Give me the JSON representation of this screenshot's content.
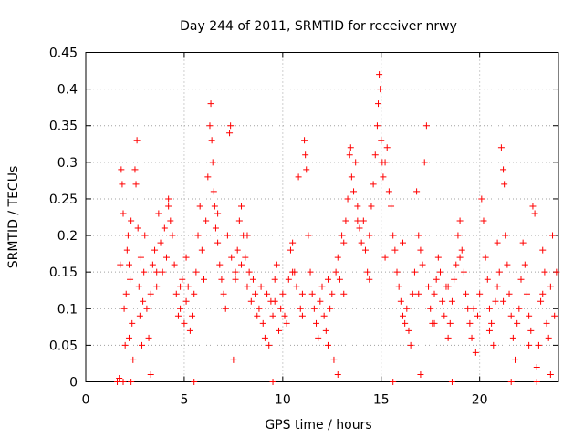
{
  "chart_data": {
    "type": "scatter",
    "title": "Day 244 of 2011, SRMTID for receiver nrwy",
    "xlabel": "GPS time / hours",
    "ylabel": "SRMTID / TECUs",
    "xlim": [
      0,
      24
    ],
    "ylim": [
      0,
      0.45
    ],
    "xticks": [
      0,
      5,
      10,
      15,
      20
    ],
    "xtick_labels": [
      "0",
      "5",
      "10",
      "15",
      "20"
    ],
    "yticks": [
      0,
      0.05,
      0.1,
      0.15,
      0.2,
      0.25,
      0.3,
      0.35,
      0.4,
      0.45
    ],
    "ytick_labels": [
      "0",
      "0.05",
      "0.1",
      "0.15",
      "0.2",
      "0.25",
      "0.3",
      "0.35",
      "0.4",
      "0.45"
    ],
    "grid": true,
    "marker": "+",
    "color": "#ff0000",
    "series": [
      {
        "name": "SRMTID",
        "points": [
          [
            1.6,
            0.0
          ],
          [
            1.7,
            0.005
          ],
          [
            1.75,
            0.16
          ],
          [
            1.8,
            0.29
          ],
          [
            1.85,
            0.27
          ],
          [
            1.9,
            0.23
          ],
          [
            1.95,
            0.1
          ],
          [
            2.0,
            0.05
          ],
          [
            2.05,
            0.12
          ],
          [
            2.1,
            0.18
          ],
          [
            2.15,
            0.2
          ],
          [
            2.2,
            0.06
          ],
          [
            2.25,
            0.14
          ],
          [
            2.3,
            0.22
          ],
          [
            2.35,
            0.08
          ],
          [
            2.4,
            0.03
          ],
          [
            2.5,
            0.29
          ],
          [
            2.55,
            0.27
          ],
          [
            2.6,
            0.33
          ],
          [
            2.65,
            0.21
          ],
          [
            2.7,
            0.13
          ],
          [
            2.75,
            0.09
          ],
          [
            2.8,
            0.17
          ],
          [
            2.85,
            0.05
          ],
          [
            2.9,
            0.11
          ],
          [
            2.95,
            0.15
          ],
          [
            3.0,
            0.2
          ],
          [
            3.1,
            0.1
          ],
          [
            3.2,
            0.06
          ],
          [
            3.3,
            0.12
          ],
          [
            3.4,
            0.16
          ],
          [
            3.5,
            0.18
          ],
          [
            3.6,
            0.13
          ],
          [
            3.7,
            0.23
          ],
          [
            3.8,
            0.19
          ],
          [
            3.9,
            0.15
          ],
          [
            4.0,
            0.21
          ],
          [
            4.1,
            0.17
          ],
          [
            4.2,
            0.25
          ],
          [
            4.3,
            0.22
          ],
          [
            4.4,
            0.2
          ],
          [
            4.5,
            0.16
          ],
          [
            4.6,
            0.12
          ],
          [
            4.7,
            0.09
          ],
          [
            4.8,
            0.1
          ],
          [
            4.9,
            0.14
          ],
          [
            5.0,
            0.08
          ],
          [
            5.1,
            0.11
          ],
          [
            5.2,
            0.13
          ],
          [
            5.3,
            0.07
          ],
          [
            5.4,
            0.09
          ],
          [
            5.5,
            0.12
          ],
          [
            5.6,
            0.15
          ],
          [
            5.7,
            0.2
          ],
          [
            5.8,
            0.24
          ],
          [
            5.9,
            0.18
          ],
          [
            6.0,
            0.14
          ],
          [
            6.1,
            0.22
          ],
          [
            6.2,
            0.28
          ],
          [
            6.3,
            0.35
          ],
          [
            6.35,
            0.38
          ],
          [
            6.4,
            0.33
          ],
          [
            6.45,
            0.3
          ],
          [
            6.5,
            0.26
          ],
          [
            6.55,
            0.24
          ],
          [
            6.6,
            0.21
          ],
          [
            6.7,
            0.19
          ],
          [
            6.8,
            0.16
          ],
          [
            6.9,
            0.14
          ],
          [
            7.0,
            0.12
          ],
          [
            7.1,
            0.1
          ],
          [
            7.2,
            0.2
          ],
          [
            7.3,
            0.34
          ],
          [
            7.35,
            0.35
          ],
          [
            7.4,
            0.17
          ],
          [
            7.5,
            0.03
          ],
          [
            7.6,
            0.15
          ],
          [
            7.7,
            0.18
          ],
          [
            7.8,
            0.22
          ],
          [
            7.9,
            0.24
          ],
          [
            8.0,
            0.2
          ],
          [
            8.1,
            0.17
          ],
          [
            8.2,
            0.13
          ],
          [
            8.3,
            0.15
          ],
          [
            8.4,
            0.11
          ],
          [
            8.5,
            0.14
          ],
          [
            8.6,
            0.12
          ],
          [
            8.7,
            0.09
          ],
          [
            8.8,
            0.1
          ],
          [
            8.9,
            0.13
          ],
          [
            9.0,
            0.08
          ],
          [
            9.1,
            0.06
          ],
          [
            9.2,
            0.12
          ],
          [
            9.3,
            0.05
          ],
          [
            9.4,
            0.11
          ],
          [
            9.5,
            0.09
          ],
          [
            9.6,
            0.14
          ],
          [
            9.7,
            0.16
          ],
          [
            9.8,
            0.07
          ],
          [
            9.9,
            0.1
          ],
          [
            10.0,
            0.12
          ],
          [
            10.1,
            0.09
          ],
          [
            10.2,
            0.08
          ],
          [
            10.3,
            0.14
          ],
          [
            10.4,
            0.18
          ],
          [
            10.5,
            0.19
          ],
          [
            10.6,
            0.15
          ],
          [
            10.7,
            0.13
          ],
          [
            10.8,
            0.28
          ],
          [
            10.9,
            0.1
          ],
          [
            11.0,
            0.12
          ],
          [
            11.1,
            0.33
          ],
          [
            11.15,
            0.31
          ],
          [
            11.2,
            0.29
          ],
          [
            11.3,
            0.2
          ],
          [
            11.4,
            0.15
          ],
          [
            11.5,
            0.12
          ],
          [
            11.6,
            0.1
          ],
          [
            11.7,
            0.08
          ],
          [
            11.8,
            0.06
          ],
          [
            11.9,
            0.11
          ],
          [
            12.0,
            0.13
          ],
          [
            12.1,
            0.09
          ],
          [
            12.2,
            0.07
          ],
          [
            12.3,
            0.05
          ],
          [
            12.4,
            0.1
          ],
          [
            12.5,
            0.12
          ],
          [
            12.6,
            0.03
          ],
          [
            12.7,
            0.15
          ],
          [
            12.8,
            0.17
          ],
          [
            12.9,
            0.14
          ],
          [
            13.0,
            0.2
          ],
          [
            13.1,
            0.19
          ],
          [
            13.2,
            0.22
          ],
          [
            13.3,
            0.25
          ],
          [
            13.4,
            0.31
          ],
          [
            13.45,
            0.32
          ],
          [
            13.5,
            0.28
          ],
          [
            13.6,
            0.26
          ],
          [
            13.7,
            0.3
          ],
          [
            13.8,
            0.24
          ],
          [
            13.9,
            0.21
          ],
          [
            14.0,
            0.19
          ],
          [
            14.1,
            0.22
          ],
          [
            14.2,
            0.18
          ],
          [
            14.3,
            0.15
          ],
          [
            14.4,
            0.2
          ],
          [
            14.5,
            0.24
          ],
          [
            14.6,
            0.27
          ],
          [
            14.7,
            0.31
          ],
          [
            14.8,
            0.35
          ],
          [
            14.85,
            0.38
          ],
          [
            14.9,
            0.42
          ],
          [
            14.95,
            0.4
          ],
          [
            15.0,
            0.33
          ],
          [
            15.05,
            0.3
          ],
          [
            15.1,
            0.28
          ],
          [
            15.2,
            0.3
          ],
          [
            15.3,
            0.32
          ],
          [
            15.4,
            0.26
          ],
          [
            15.5,
            0.24
          ],
          [
            15.6,
            0.2
          ],
          [
            15.7,
            0.18
          ],
          [
            15.8,
            0.15
          ],
          [
            15.9,
            0.13
          ],
          [
            16.0,
            0.11
          ],
          [
            16.1,
            0.09
          ],
          [
            16.2,
            0.08
          ],
          [
            16.3,
            0.1
          ],
          [
            16.4,
            0.07
          ],
          [
            16.5,
            0.05
          ],
          [
            16.6,
            0.12
          ],
          [
            16.7,
            0.15
          ],
          [
            16.8,
            0.26
          ],
          [
            16.9,
            0.2
          ],
          [
            17.0,
            0.18
          ],
          [
            17.1,
            0.16
          ],
          [
            17.2,
            0.3
          ],
          [
            17.3,
            0.35
          ],
          [
            17.4,
            0.13
          ],
          [
            17.5,
            0.1
          ],
          [
            17.6,
            0.08
          ],
          [
            17.7,
            0.12
          ],
          [
            17.8,
            0.14
          ],
          [
            17.9,
            0.17
          ],
          [
            18.0,
            0.15
          ],
          [
            18.1,
            0.11
          ],
          [
            18.2,
            0.09
          ],
          [
            18.3,
            0.13
          ],
          [
            18.4,
            0.06
          ],
          [
            18.5,
            0.08
          ],
          [
            18.6,
            0.11
          ],
          [
            18.7,
            0.14
          ],
          [
            18.8,
            0.16
          ],
          [
            18.9,
            0.2
          ],
          [
            19.0,
            0.22
          ],
          [
            19.1,
            0.18
          ],
          [
            19.2,
            0.15
          ],
          [
            19.3,
            0.12
          ],
          [
            19.4,
            0.1
          ],
          [
            19.5,
            0.08
          ],
          [
            19.6,
            0.06
          ],
          [
            19.7,
            0.1
          ],
          [
            19.8,
            0.04
          ],
          [
            19.9,
            0.09
          ],
          [
            20.0,
            0.12
          ],
          [
            20.1,
            0.25
          ],
          [
            20.2,
            0.22
          ],
          [
            20.3,
            0.17
          ],
          [
            20.4,
            0.14
          ],
          [
            20.5,
            0.1
          ],
          [
            20.6,
            0.08
          ],
          [
            20.7,
            0.05
          ],
          [
            20.8,
            0.11
          ],
          [
            20.9,
            0.13
          ],
          [
            21.0,
            0.15
          ],
          [
            21.1,
            0.32
          ],
          [
            21.2,
            0.29
          ],
          [
            21.25,
            0.27
          ],
          [
            21.3,
            0.2
          ],
          [
            21.4,
            0.16
          ],
          [
            21.5,
            0.12
          ],
          [
            21.6,
            0.09
          ],
          [
            21.7,
            0.06
          ],
          [
            21.8,
            0.03
          ],
          [
            21.9,
            0.08
          ],
          [
            22.0,
            0.1
          ],
          [
            22.1,
            0.14
          ],
          [
            22.2,
            0.19
          ],
          [
            22.3,
            0.16
          ],
          [
            22.4,
            0.12
          ],
          [
            22.5,
            0.09
          ],
          [
            22.6,
            0.07
          ],
          [
            22.7,
            0.24
          ],
          [
            22.8,
            0.23
          ],
          [
            22.9,
            0.02
          ],
          [
            23.0,
            0.05
          ],
          [
            23.1,
            0.11
          ],
          [
            23.2,
            0.18
          ],
          [
            23.3,
            0.15
          ],
          [
            23.4,
            0.08
          ],
          [
            23.5,
            0.06
          ],
          [
            23.6,
            0.13
          ],
          [
            23.7,
            0.2
          ],
          [
            23.8,
            0.09
          ],
          [
            1.9,
            0.0
          ],
          [
            2.3,
            0.0
          ],
          [
            3.3,
            0.01
          ],
          [
            5.5,
            0.0
          ],
          [
            9.5,
            0.0
          ],
          [
            12.8,
            0.01
          ],
          [
            15.6,
            0.0
          ],
          [
            17.0,
            0.01
          ],
          [
            18.6,
            0.0
          ],
          [
            21.6,
            0.0
          ],
          [
            22.9,
            0.0
          ],
          [
            23.6,
            0.01
          ],
          [
            4.2,
            0.24
          ],
          [
            6.7,
            0.23
          ],
          [
            8.2,
            0.2
          ],
          [
            10.5,
            0.15
          ],
          [
            13.8,
            0.22
          ],
          [
            16.1,
            0.19
          ],
          [
            19.0,
            0.17
          ],
          [
            20.9,
            0.19
          ],
          [
            3.6,
            0.15
          ],
          [
            5.1,
            0.17
          ],
          [
            7.6,
            0.14
          ],
          [
            9.6,
            0.11
          ],
          [
            12.3,
            0.14
          ],
          [
            14.4,
            0.14
          ],
          [
            16.9,
            0.12
          ],
          [
            18.4,
            0.13
          ],
          [
            21.2,
            0.11
          ],
          [
            23.2,
            0.12
          ],
          [
            2.2,
            0.16
          ],
          [
            4.8,
            0.13
          ],
          [
            7.9,
            0.16
          ],
          [
            11.0,
            0.09
          ],
          [
            13.1,
            0.12
          ],
          [
            15.2,
            0.17
          ],
          [
            17.7,
            0.08
          ],
          [
            20.5,
            0.07
          ],
          [
            22.5,
            0.05
          ],
          [
            23.9,
            0.15
          ]
        ]
      }
    ]
  }
}
